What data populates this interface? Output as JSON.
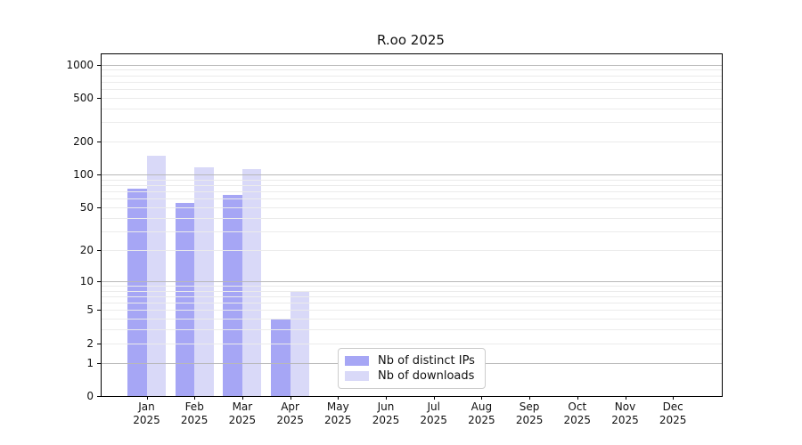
{
  "title": "R.oo 2025",
  "chart_data": {
    "type": "bar",
    "title": "R.oo 2025",
    "months": [
      "Jan",
      "Feb",
      "Mar",
      "Apr",
      "May",
      "Jun",
      "Jul",
      "Aug",
      "Sep",
      "Oct",
      "Nov",
      "Dec"
    ],
    "year": "2025",
    "categories": [
      "Jan 2025",
      "Feb 2025",
      "Mar 2025",
      "Apr 2025",
      "May 2025",
      "Jun 2025",
      "Jul 2025",
      "Aug 2025",
      "Sep 2025",
      "Oct 2025",
      "Nov 2025",
      "Dec 2025"
    ],
    "series": [
      {
        "name": "Nb of distinct IPs",
        "color": "#a6a6f5",
        "values": [
          75,
          55,
          65,
          4,
          0,
          0,
          0,
          0,
          0,
          0,
          0,
          0
        ]
      },
      {
        "name": "Nb of downloads",
        "color": "#d9d9f8",
        "values": [
          148,
          116,
          112,
          8,
          0,
          0,
          0,
          0,
          0,
          0,
          0,
          0
        ]
      }
    ],
    "y_axis": {
      "scale": "log1p",
      "tick_labels": [
        "0",
        "1",
        "2",
        "5",
        "10",
        "20",
        "50",
        "100",
        "200",
        "500",
        "1000"
      ],
      "tick_values": [
        0,
        1,
        2,
        5,
        10,
        20,
        50,
        100,
        200,
        500,
        1000
      ],
      "major_gridlines": [
        1,
        10,
        100,
        1000
      ],
      "ylim": [
        0,
        1240
      ]
    },
    "xlabel": "",
    "ylabel": "",
    "grid": true,
    "legend_position": "lower-center"
  },
  "colors": {
    "distinct_ips": "#a6a6f5",
    "downloads": "#d9d9f8",
    "major_grid": "#b8b8b8",
    "minor_grid": "#ebebeb",
    "spine": "#000000",
    "legend_border": "#cccccc"
  }
}
